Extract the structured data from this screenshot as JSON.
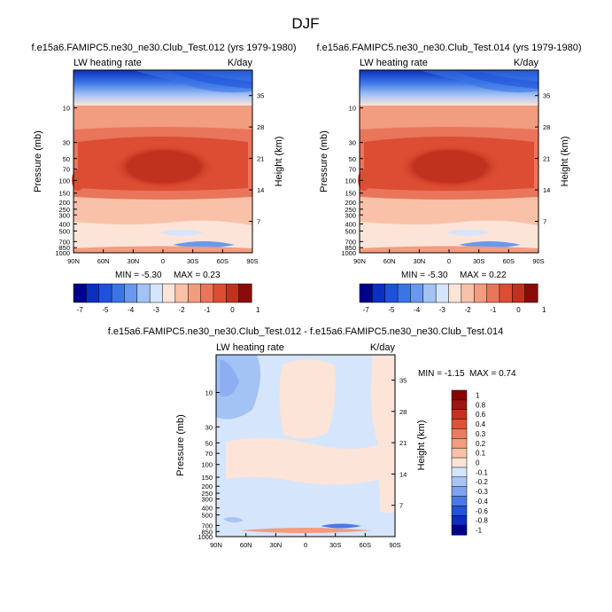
{
  "figure": {
    "title": "DJF"
  },
  "colors": {
    "cb_main": [
      "#00008b",
      "#0b2fbf",
      "#1f52d8",
      "#3a74e6",
      "#6a98ef",
      "#a3c3f5",
      "#d5e5fb",
      "#fde4d8",
      "#f9c2a8",
      "#f29c80",
      "#e9755b",
      "#dc4d33",
      "#c0321e",
      "#8b0b0b"
    ],
    "cb_diff": [
      "#00008b",
      "#0b2fbf",
      "#2452d8",
      "#4a78e8",
      "#7fa2f0",
      "#a9c5f6",
      "#d5e5fb",
      "#fde4d8",
      "#f9c2a8",
      "#f29c80",
      "#eb7b5e",
      "#de5238",
      "#c4321e",
      "#a01712",
      "#8b0000"
    ]
  },
  "chart_data": [
    {
      "type": "heatmap",
      "name": "panel-1",
      "title": "f.e15a6.FAMIPC5.ne30_ne30.Club_Test.012 (yrs 1979-1980)",
      "left_label": "LW heating rate",
      "right_label": "K/day",
      "xlabel": "",
      "ylabel": "Pressure (mb)",
      "ylabel_right": "Height (km)",
      "x_ticks": [
        "90N",
        "60N",
        "30N",
        "0",
        "30S",
        "60S",
        "90S"
      ],
      "y_ticks": [
        "10",
        "30",
        "50",
        "70",
        "100",
        "150",
        "200",
        "250",
        "300",
        "400",
        "500",
        "700",
        "850",
        "1000"
      ],
      "y_ticks_right": [
        "35",
        "28",
        "21",
        "14",
        "7"
      ],
      "xlim": [
        90,
        -90
      ],
      "ylim": [
        1000,
        3
      ],
      "min_text": "MIN = -5.30",
      "max_text": "MAX =  0.23",
      "colorbar_labels": [
        "-7",
        "-5",
        "-4",
        "-3",
        "-2",
        "-1",
        "0",
        "1"
      ],
      "min": -5.3,
      "max": 0.23
    },
    {
      "type": "heatmap",
      "name": "panel-2",
      "title": "f.e15a6.FAMIPC5.ne30_ne30.Club_Test.014 (yrs 1979-1980)",
      "left_label": "LW heating rate",
      "right_label": "K/day",
      "xlabel": "",
      "ylabel": "Pressure (mb)",
      "ylabel_right": "Height (km)",
      "x_ticks": [
        "90N",
        "60N",
        "30N",
        "0",
        "30S",
        "60S",
        "90S"
      ],
      "y_ticks": [
        "10",
        "30",
        "50",
        "70",
        "100",
        "150",
        "200",
        "250",
        "300",
        "400",
        "500",
        "700",
        "850",
        "1000"
      ],
      "y_ticks_right": [
        "35",
        "28",
        "21",
        "14",
        "7"
      ],
      "xlim": [
        90,
        -90
      ],
      "ylim": [
        1000,
        3
      ],
      "min_text": "MIN = -5.30",
      "max_text": "MAX =  0.22",
      "colorbar_labels": [
        "-7",
        "-5",
        "-4",
        "-3",
        "-2",
        "-1",
        "0",
        "1"
      ],
      "min": -5.3,
      "max": 0.22
    },
    {
      "type": "heatmap",
      "name": "panel-diff",
      "title": "f.e15a6.FAMIPC5.ne30_ne30.Club_Test.012 - f.e15a6.FAMIPC5.ne30_ne30.Club_Test.014",
      "left_label": "LW heating rate",
      "right_label": "K/day",
      "xlabel": "",
      "ylabel": "Pressure (mb)",
      "ylabel_right": "Height (km)",
      "x_ticks": [
        "90N",
        "60N",
        "30N",
        "0",
        "30S",
        "60S",
        "90S"
      ],
      "y_ticks": [
        "10",
        "30",
        "50",
        "70",
        "100",
        "150",
        "200",
        "250",
        "300",
        "400",
        "500",
        "700",
        "850",
        "1000"
      ],
      "y_ticks_right": [
        "35",
        "28",
        "21",
        "14",
        "7"
      ],
      "xlim": [
        90,
        -90
      ],
      "ylim": [
        1000,
        3
      ],
      "min_text": "MIN = -1.15",
      "max_text": "MAX =  0.74",
      "colorbar_labels": [
        "1",
        "0.8",
        "0.6",
        "0.4",
        "0.3",
        "0.2",
        "0.1",
        "0",
        "-0.1",
        "-0.2",
        "-0.3",
        "-0.4",
        "-0.6",
        "-0.8",
        "-1"
      ],
      "min": -1.15,
      "max": 0.74
    }
  ]
}
